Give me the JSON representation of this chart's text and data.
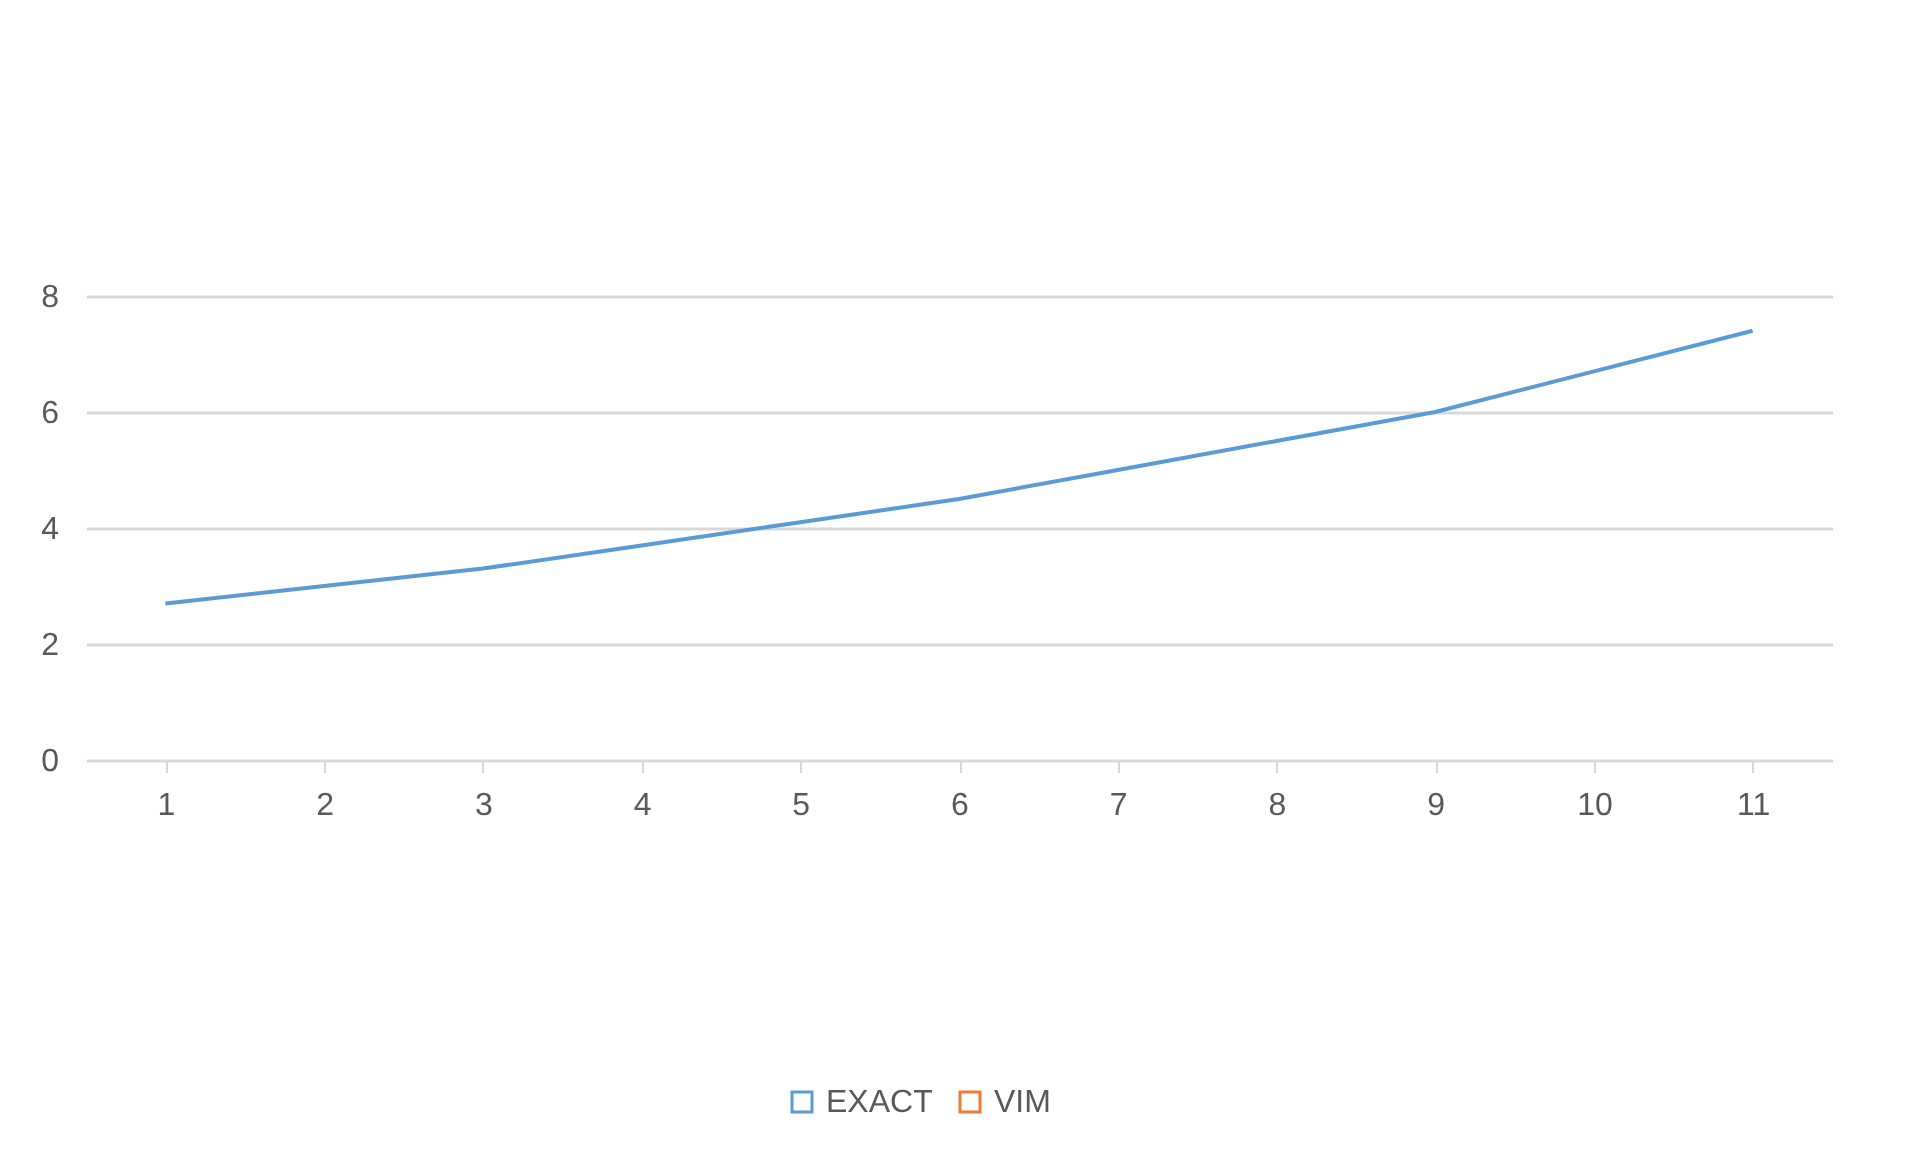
{
  "chart_data": {
    "type": "line",
    "categories": [
      "1",
      "2",
      "3",
      "4",
      "5",
      "6",
      "7",
      "8",
      "9",
      "10",
      "11"
    ],
    "series": [
      {
        "name": "EXACT",
        "color": "#5b9bd5",
        "values": [
          2.7,
          3.0,
          3.3,
          3.7,
          4.1,
          4.5,
          5.0,
          5.5,
          6.0,
          6.7,
          7.4
        ]
      },
      {
        "name": "VIM",
        "color": "#ed7d31",
        "values": [
          null,
          null,
          null,
          null,
          null,
          null,
          null,
          null,
          null,
          null,
          null
        ]
      }
    ],
    "ylim": [
      0,
      8
    ],
    "yticks": [
      0,
      2,
      4,
      6,
      8
    ],
    "grid": "y",
    "legend": "bottom",
    "marker": "none",
    "line_style": "solid"
  }
}
